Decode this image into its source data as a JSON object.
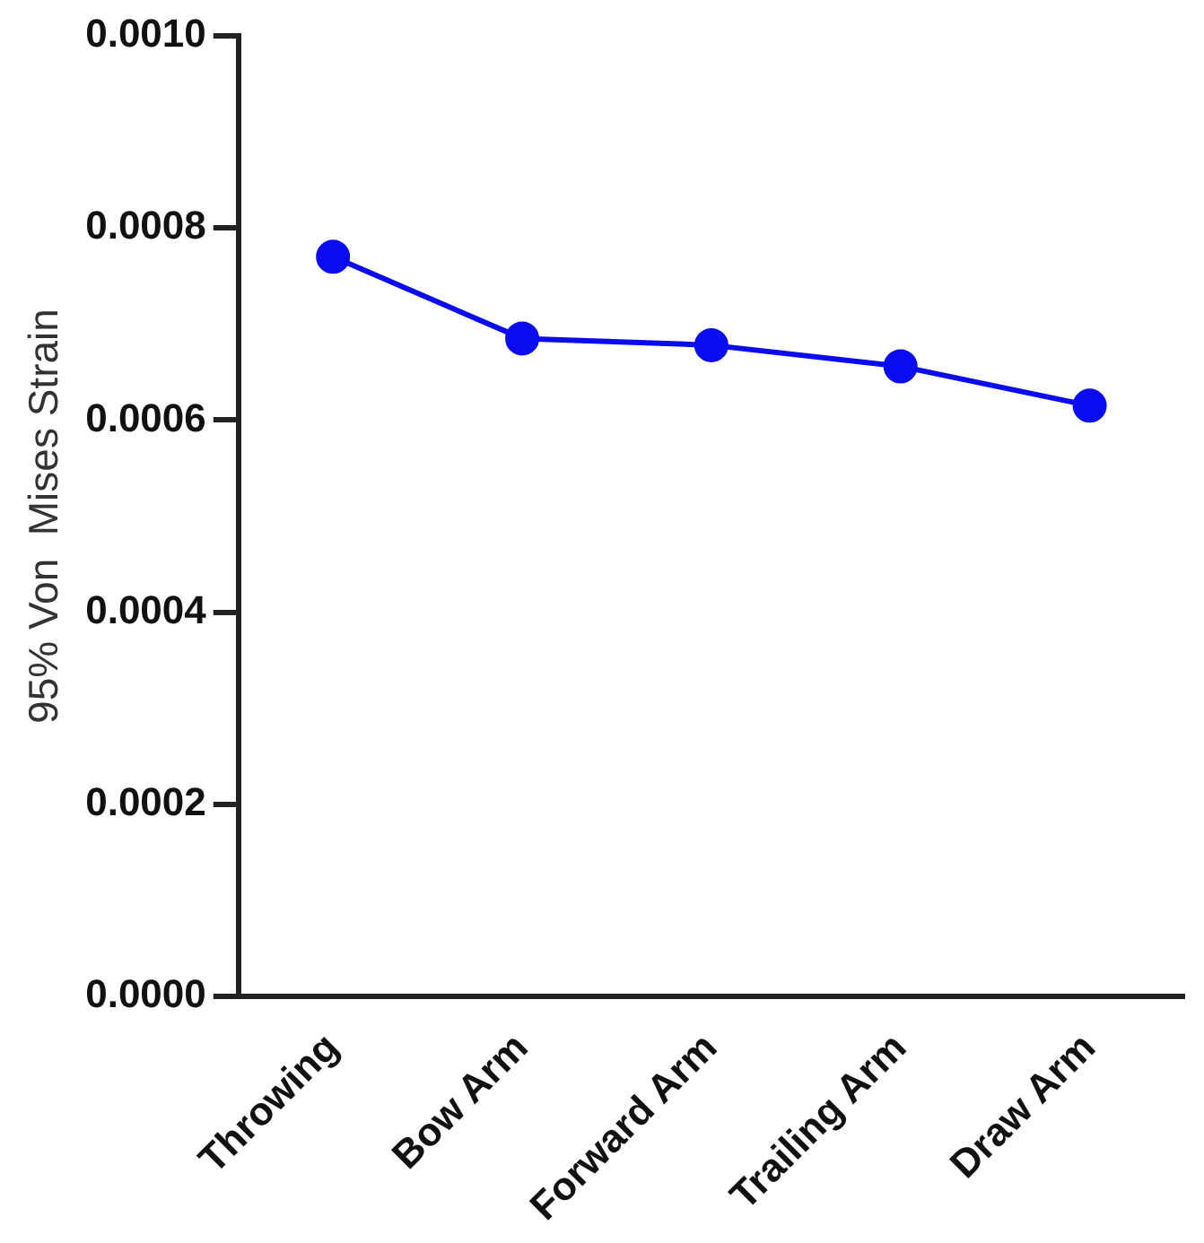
{
  "chart_data": {
    "type": "line",
    "ylabel": "95% Von  Mises Strain",
    "categories": [
      "Throwing",
      "Bow Arm",
      "Forward Arm",
      "Trailing Arm",
      "Draw Arm"
    ],
    "series": [
      {
        "color": "#0b0bf0",
        "values": [
          0.00077,
          0.000685,
          0.000678,
          0.000656,
          0.000615
        ]
      }
    ],
    "ylim": [
      0,
      0.001
    ],
    "yticks": [
      {
        "value": 0,
        "label": "0.0000"
      },
      {
        "value": 0.0002,
        "label": "0.0002"
      },
      {
        "value": 0.0004,
        "label": "0.0004"
      },
      {
        "value": 0.0006,
        "label": "0.0006"
      },
      {
        "value": 0.0008,
        "label": "0.0008"
      },
      {
        "value": 0.001,
        "label": "0.0010"
      }
    ],
    "grid": false,
    "legend": false,
    "marker": "circle",
    "line_style": "solid"
  }
}
